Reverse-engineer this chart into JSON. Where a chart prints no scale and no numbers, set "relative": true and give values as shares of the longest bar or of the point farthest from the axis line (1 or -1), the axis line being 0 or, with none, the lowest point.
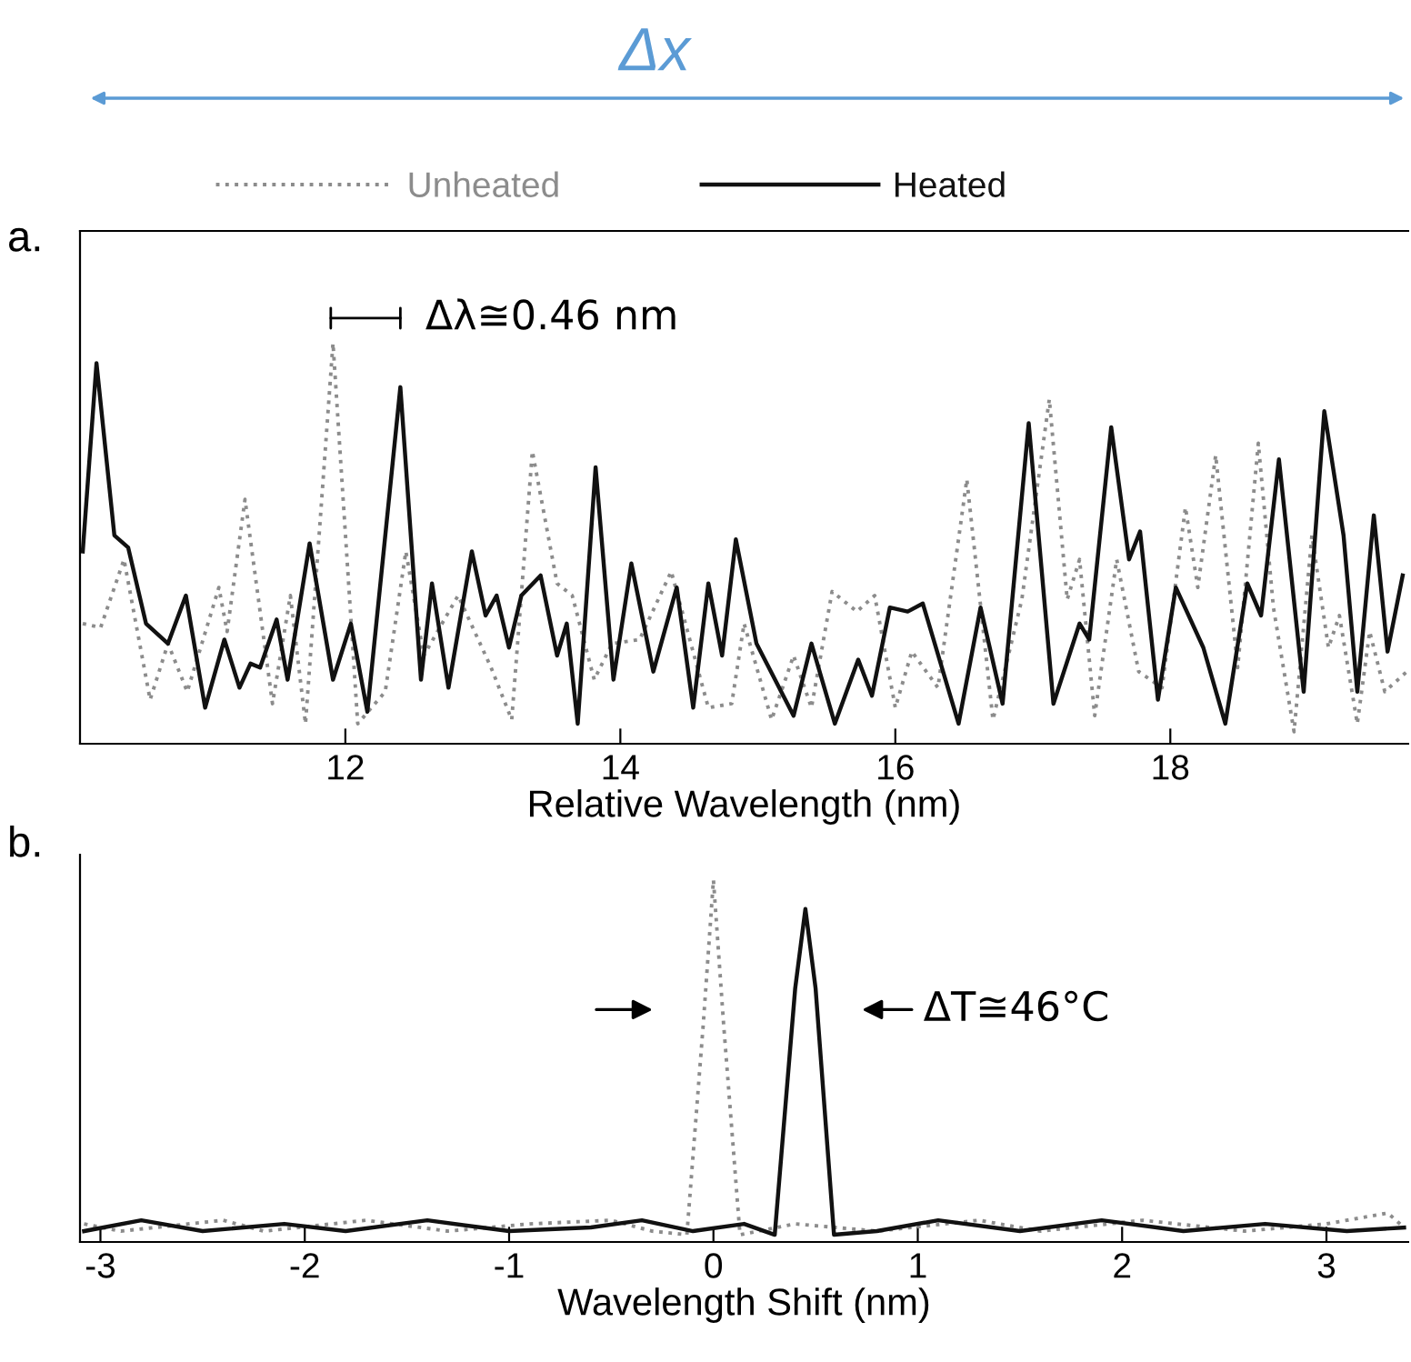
{
  "chart_data": [
    {
      "type": "line",
      "relative": true,
      "xlabel": "Relative Wavelength (nm)",
      "xlim": [
        10.07,
        19.73
      ],
      "xticks": [
        12,
        14,
        16,
        18
      ],
      "tick_labels": "x",
      "legend": "top",
      "grid": false,
      "annotations": [
        "Δx",
        "a.",
        "Δλ≅0.46 nm"
      ],
      "series": [
        {
          "name": "Unheated",
          "color": "#8c8c8c",
          "line_style": "dotted",
          "x": [
            10.09,
            10.22,
            10.39,
            10.58,
            10.71,
            10.85,
            11.08,
            11.14,
            11.27,
            11.47,
            11.6,
            11.71,
            11.91,
            12.09,
            12.29,
            12.44,
            12.57,
            12.82,
            13.06,
            13.21,
            13.36,
            13.54,
            13.65,
            13.81,
            13.94,
            14.14,
            14.37,
            14.64,
            14.81,
            14.9,
            15.1,
            15.26,
            15.39,
            15.54,
            15.72,
            15.85,
            16.0,
            16.12,
            16.31,
            16.52,
            16.71,
            16.92,
            17.12,
            17.25,
            17.34,
            17.45,
            17.61,
            17.77,
            17.94,
            18.11,
            18.2,
            18.33,
            18.49,
            18.64,
            18.75,
            18.9,
            19.03,
            19.15,
            19.23,
            19.36,
            19.45,
            19.56,
            19.72
          ],
          "values": [
            0.3,
            0.29,
            0.46,
            0.11,
            0.25,
            0.13,
            0.39,
            0.28,
            0.61,
            0.1,
            0.37,
            0.05,
            1.0,
            0.05,
            0.13,
            0.48,
            0.22,
            0.37,
            0.19,
            0.06,
            0.73,
            0.4,
            0.37,
            0.16,
            0.25,
            0.26,
            0.43,
            0.09,
            0.1,
            0.3,
            0.06,
            0.22,
            0.09,
            0.38,
            0.33,
            0.37,
            0.09,
            0.23,
            0.14,
            0.66,
            0.06,
            0.36,
            0.86,
            0.36,
            0.46,
            0.07,
            0.46,
            0.18,
            0.14,
            0.59,
            0.39,
            0.72,
            0.19,
            0.75,
            0.34,
            0.03,
            0.52,
            0.24,
            0.32,
            0.05,
            0.28,
            0.13,
            0.18
          ]
        },
        {
          "name": "Heated",
          "color": "#111111",
          "line_style": "solid",
          "x": [
            10.09,
            10.19,
            10.32,
            10.42,
            10.55,
            10.71,
            10.84,
            10.98,
            11.12,
            11.23,
            11.31,
            11.38,
            11.5,
            11.58,
            11.74,
            11.91,
            12.04,
            12.16,
            12.4,
            12.55,
            12.63,
            12.75,
            12.92,
            13.02,
            13.1,
            13.19,
            13.28,
            13.42,
            13.54,
            13.61,
            13.69,
            13.82,
            13.95,
            14.08,
            14.24,
            14.41,
            14.53,
            14.64,
            14.74,
            14.84,
            14.99,
            15.26,
            15.39,
            15.56,
            15.73,
            15.83,
            15.96,
            16.09,
            16.2,
            16.46,
            16.62,
            16.78,
            16.97,
            17.15,
            17.34,
            17.41,
            17.57,
            17.7,
            17.78,
            17.91,
            18.04,
            18.24,
            18.4,
            18.56,
            18.66,
            18.79,
            18.97,
            19.12,
            19.26,
            19.36,
            19.48,
            19.58,
            19.69
          ],
          "values": [
            0.48,
            0.95,
            0.52,
            0.49,
            0.3,
            0.25,
            0.37,
            0.09,
            0.26,
            0.14,
            0.2,
            0.19,
            0.31,
            0.16,
            0.5,
            0.16,
            0.3,
            0.08,
            0.89,
            0.16,
            0.4,
            0.14,
            0.48,
            0.32,
            0.37,
            0.24,
            0.37,
            0.42,
            0.22,
            0.3,
            0.05,
            0.69,
            0.16,
            0.45,
            0.18,
            0.39,
            0.09,
            0.4,
            0.22,
            0.51,
            0.25,
            0.07,
            0.25,
            0.05,
            0.21,
            0.12,
            0.34,
            0.33,
            0.35,
            0.05,
            0.34,
            0.1,
            0.8,
            0.1,
            0.3,
            0.26,
            0.79,
            0.46,
            0.53,
            0.11,
            0.39,
            0.24,
            0.05,
            0.4,
            0.32,
            0.71,
            0.13,
            0.83,
            0.52,
            0.13,
            0.57,
            0.23,
            0.42
          ]
        }
      ]
    },
    {
      "type": "line",
      "relative": true,
      "xlabel": "Wavelength Shift (nm)",
      "xlim": [
        -3.1,
        3.4
      ],
      "xticks": [
        {
          "value": -3,
          "label": "-3"
        },
        {
          "value": -2,
          "label": "-2"
        },
        {
          "value": -1,
          "label": "-1"
        },
        0,
        1,
        2,
        3
      ],
      "tick_labels": "x",
      "grid": false,
      "annotations": [
        "b.",
        "ΔT≅46°C"
      ],
      "series": [
        {
          "color": "#8c8c8c",
          "line_style": "dotted",
          "x": [
            -3.08,
            -2.9,
            -2.4,
            -2.2,
            -1.7,
            -1.3,
            -0.9,
            -0.5,
            -0.3,
            -0.13,
            -0.05,
            0.0,
            0.05,
            0.13,
            0.4,
            0.8,
            1.3,
            1.6,
            2.1,
            2.6,
            3.0,
            3.3,
            3.38
          ],
          "values": [
            0.05,
            0.03,
            0.06,
            0.03,
            0.06,
            0.03,
            0.05,
            0.06,
            0.03,
            0.02,
            0.6,
            1.0,
            0.6,
            0.02,
            0.05,
            0.03,
            0.06,
            0.03,
            0.06,
            0.03,
            0.05,
            0.08,
            0.04
          ]
        },
        {
          "color": "#111111",
          "line_style": "solid",
          "x": [
            -3.08,
            -2.8,
            -2.5,
            -2.1,
            -1.8,
            -1.4,
            -1.0,
            -0.6,
            -0.35,
            -0.1,
            0.15,
            0.3,
            0.4,
            0.45,
            0.5,
            0.59,
            0.8,
            1.1,
            1.5,
            1.9,
            2.3,
            2.7,
            3.1,
            3.38
          ],
          "values": [
            0.03,
            0.06,
            0.03,
            0.05,
            0.03,
            0.06,
            0.03,
            0.04,
            0.06,
            0.03,
            0.05,
            0.02,
            0.7,
            0.92,
            0.7,
            0.02,
            0.03,
            0.06,
            0.03,
            0.06,
            0.03,
            0.05,
            0.03,
            0.04
          ]
        }
      ]
    }
  ]
}
